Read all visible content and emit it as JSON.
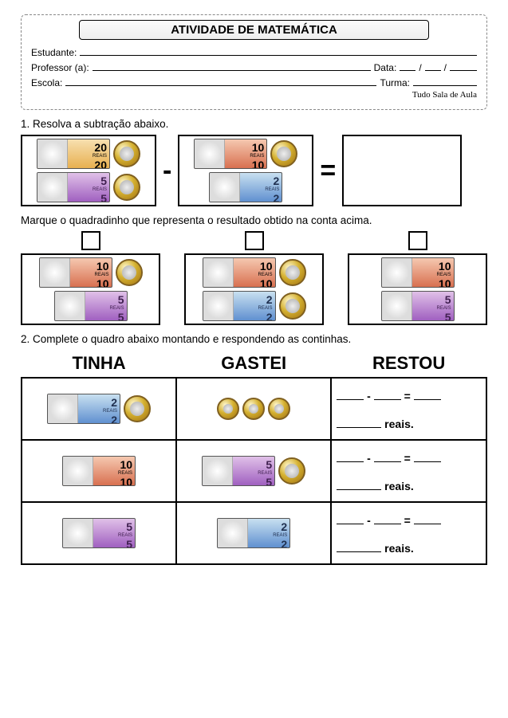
{
  "header": {
    "title": "ATIVIDADE DE MATEMÁTICA",
    "student_label": "Estudante:",
    "teacher_label": "Professor (a):",
    "date_label": "Data:",
    "school_label": "Escola:",
    "class_label": "Turma:",
    "credit": "Tudo Sala de Aula"
  },
  "q1": {
    "prompt": "1. Resolva a subtração abaixo.",
    "minus": "-",
    "equals": "=",
    "left": {
      "bills": [
        20,
        5
      ],
      "coins": 2
    },
    "right": {
      "bills": [
        10,
        2
      ],
      "coins": 1
    },
    "opt_prompt": "Marque o quadradinho que representa o resultado obtido na conta acima.",
    "options": [
      {
        "bills": [
          10,
          5
        ],
        "coins": 1
      },
      {
        "bills": [
          10,
          2
        ],
        "coins": 2
      },
      {
        "bills": [
          10,
          5
        ],
        "coins": 0
      }
    ]
  },
  "q2": {
    "prompt": "2. Complete o quadro abaixo montando e respondendo as continhas.",
    "headers": [
      "TINHA",
      "GASTEI",
      "RESTOU"
    ],
    "reais": "reais.",
    "rows": [
      {
        "tinha": {
          "bills": [
            2
          ],
          "coins": 1
        },
        "gastei": {
          "bills": [],
          "coins": 3
        }
      },
      {
        "tinha": {
          "bills": [
            10
          ],
          "coins": 0
        },
        "gastei": {
          "bills": [
            5
          ],
          "coins": 1
        }
      },
      {
        "tinha": {
          "bills": [
            5
          ],
          "coins": 0
        },
        "gastei": {
          "bills": [
            2
          ],
          "coins": 0
        }
      }
    ]
  },
  "bill_label": "REAIS",
  "colors": {
    "20": "b20",
    "10": "b10",
    "5": "b5",
    "2": "b2"
  }
}
